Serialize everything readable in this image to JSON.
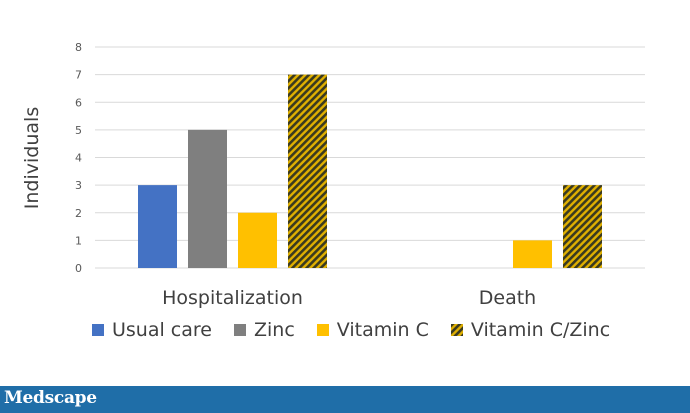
{
  "chart_data": {
    "type": "bar",
    "ylabel": "Individuals",
    "ylim": [
      0,
      8
    ],
    "yticks": [
      0,
      1,
      2,
      3,
      4,
      5,
      6,
      7,
      8
    ],
    "grid": true,
    "legend_position": "bottom",
    "categories": [
      "Hospitalization",
      "Death"
    ],
    "series": [
      {
        "name": "Usual care",
        "values": [
          3,
          0
        ],
        "color": "#4472c4",
        "pattern": "solid"
      },
      {
        "name": "Zinc",
        "values": [
          5,
          0
        ],
        "color": "#7f7f7f",
        "pattern": "solid"
      },
      {
        "name": "Vitamin C",
        "values": [
          2,
          1
        ],
        "color": "#ffc000",
        "pattern": "solid"
      },
      {
        "name": "Vitamin C/Zinc",
        "values": [
          7,
          3
        ],
        "color": "#4d4d1f",
        "pattern": "diagonal-stripes-gold"
      }
    ]
  },
  "footer": {
    "logo_text": "Medscape",
    "background": "#1f6ea8"
  }
}
